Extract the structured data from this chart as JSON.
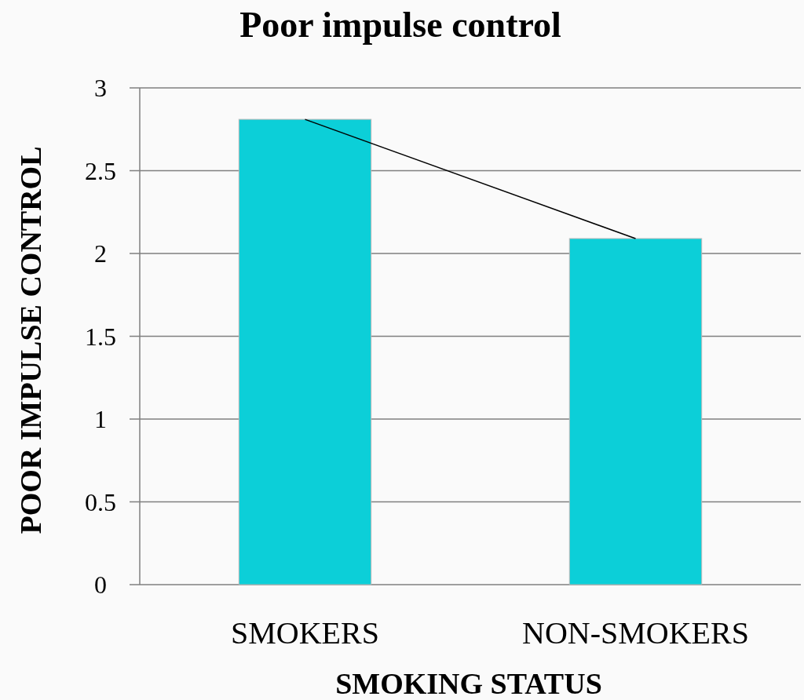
{
  "chart_data": {
    "type": "bar",
    "title": "Poor impulse control",
    "xlabel": "SMOKING STATUS",
    "ylabel": "POOR IMPULSE CONTROL",
    "categories": [
      "SMOKERS",
      "NON-SMOKERS"
    ],
    "series": [
      {
        "color": "#0ccfd8",
        "values": [
          2.81,
          2.09
        ]
      },
      {
        "type": "line",
        "color": "#000000",
        "values": [
          2.81,
          2.09
        ]
      }
    ],
    "ylim": [
      0,
      3
    ],
    "yticks": [
      0,
      0.5,
      1,
      1.5,
      2,
      2.5,
      3
    ],
    "grid": "y"
  }
}
